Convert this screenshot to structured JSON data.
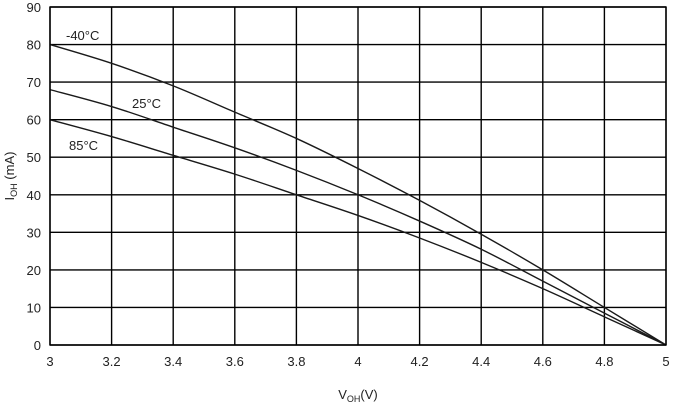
{
  "chart_data": {
    "type": "line",
    "xlabel": {
      "main": "V",
      "sub": "OH",
      "suffix": "(V)"
    },
    "ylabel": {
      "main": "I",
      "sub": "OH",
      "suffix": " (mA)"
    },
    "xlim": [
      3,
      5
    ],
    "ylim": [
      0,
      90
    ],
    "xticks": [
      "3",
      "3.2",
      "3.4",
      "3.6",
      "3.8",
      "4",
      "4.2",
      "4.4",
      "4.6",
      "4.8",
      "5"
    ],
    "yticks": [
      "0",
      "10",
      "20",
      "30",
      "40",
      "50",
      "60",
      "70",
      "80",
      "90"
    ],
    "grid": true,
    "series": [
      {
        "name": "-40°C",
        "x": [
          3.0,
          3.2,
          3.4,
          3.6,
          3.8,
          4.0,
          4.2,
          4.4,
          4.6,
          4.8,
          5.0
        ],
        "y": [
          80,
          75,
          69,
          62,
          55,
          47,
          38.5,
          29.5,
          20,
          10,
          0
        ]
      },
      {
        "name": "25°C",
        "x": [
          3.0,
          3.2,
          3.4,
          3.6,
          3.8,
          4.0,
          4.2,
          4.4,
          4.6,
          4.8,
          5.0
        ],
        "y": [
          68,
          63.5,
          58,
          52.5,
          46.5,
          40,
          33,
          25.5,
          17,
          8.5,
          0
        ]
      },
      {
        "name": "85°C",
        "x": [
          3.0,
          3.2,
          3.4,
          3.6,
          3.8,
          4.0,
          4.2,
          4.4,
          4.6,
          4.8,
          5.0
        ],
        "y": [
          60,
          55.5,
          50.5,
          45.5,
          40,
          34.5,
          28.5,
          22,
          15,
          7.5,
          0
        ]
      }
    ]
  }
}
